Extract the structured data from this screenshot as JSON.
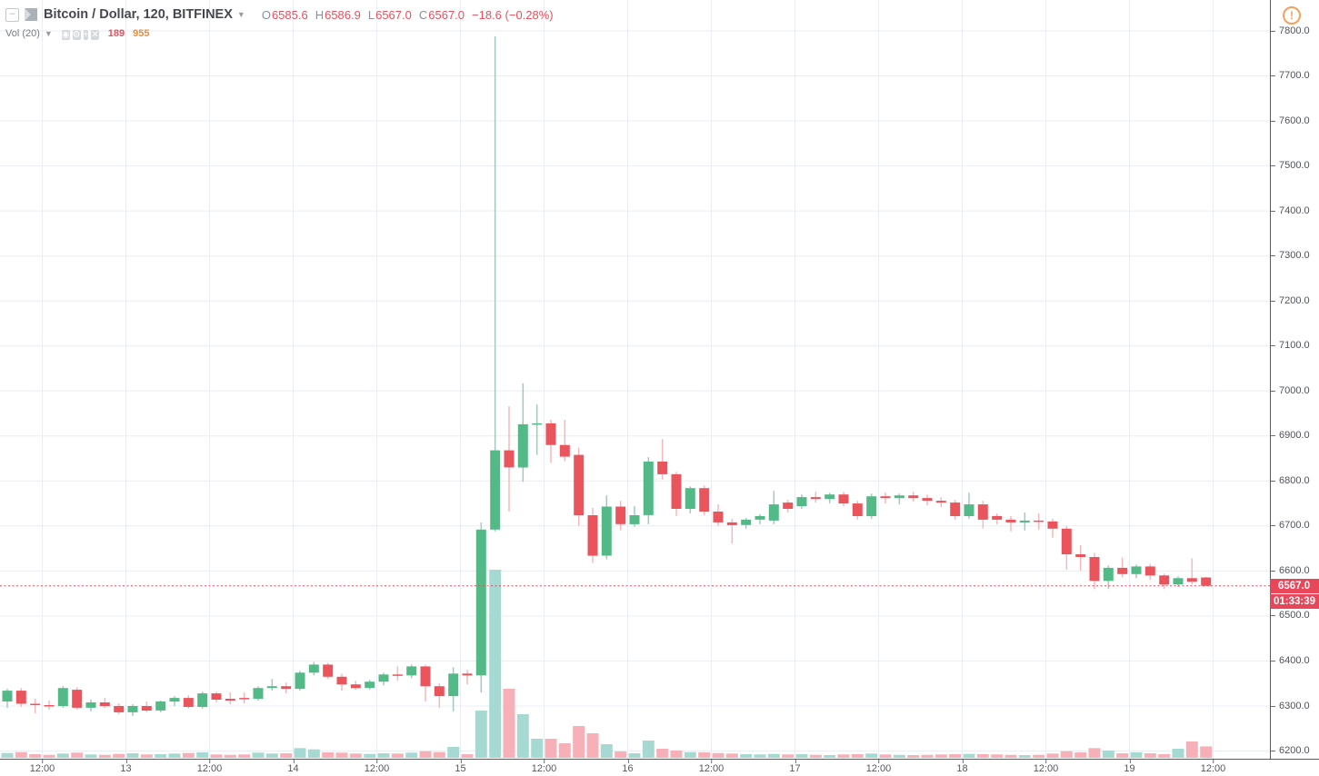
{
  "header": {
    "collapse_glyph": "—",
    "symbol_title": "Bitcoin / Dollar, 120, BITFINEX",
    "caret_glyph": "▼",
    "ohlc": {
      "o_label": "O",
      "o": "6585.6",
      "h_label": "H",
      "h": "6586.9",
      "l_label": "L",
      "l": "6567.0",
      "c_label": "C",
      "c": "6567.0",
      "change": "−18.6 (−0.28%)"
    }
  },
  "indicator": {
    "label": "Vol (20)",
    "caret_glyph": "▼",
    "buttons": [
      {
        "name": "eye-icon",
        "glyph": "◉"
      },
      {
        "name": "gear-icon",
        "glyph": "⚙"
      },
      {
        "name": "plus-icon",
        "glyph": "+"
      },
      {
        "name": "close-icon",
        "glyph": "✕"
      }
    ],
    "current_value": "189",
    "ma_value": "955"
  },
  "price_axis": {
    "ticks": [
      "7800.0",
      "7700.0",
      "7600.0",
      "7500.0",
      "7400.0",
      "7300.0",
      "7200.0",
      "7100.0",
      "7000.0",
      "6900.0",
      "6800.0",
      "6700.0",
      "6600.0",
      "6500.0",
      "6400.0",
      "6300.0",
      "6200.0"
    ],
    "last_price_label": "6567.0",
    "countdown": "01:33:39"
  },
  "time_axis": {
    "labels": [
      "12:00",
      "13",
      "12:00",
      "14",
      "12:00",
      "15",
      "12:00",
      "16",
      "12:00",
      "17",
      "12:00",
      "18",
      "12:00",
      "19",
      "12:00"
    ]
  },
  "alerts": {
    "warning_glyph": "!"
  },
  "colors": {
    "up_body": "#53b987",
    "down_body": "#e9545d",
    "up_wick": "#a3c8c2",
    "down_wick": "#f4b9be",
    "up_volume": "#a7d9d3",
    "down_volume": "#f7b0b7",
    "grid": "#e9eef4",
    "axis_line": "#555962",
    "last_price": "#e8475a",
    "warning_orange": "#f5a05a",
    "value_red": "#e8505e",
    "value_orange": "#f08b2f"
  },
  "chart_data": {
    "type": "candlestick",
    "symbol": "BITFINEX:BTCUSD",
    "title": "Bitcoin / Dollar, 120, BITFINEX",
    "interval_minutes": 120,
    "y_axis": {
      "min": 6200,
      "max": 7800,
      "tick_step": 100,
      "grid": true
    },
    "x_axis_labels": [
      "12:00",
      "13",
      "12:00",
      "14",
      "12:00",
      "15",
      "12:00",
      "16",
      "12:00",
      "17",
      "12:00",
      "18",
      "12:00",
      "19",
      "12:00"
    ],
    "last_price": 6567.0,
    "volume_unit": "K",
    "candles_format": [
      "open",
      "high",
      "low",
      "close",
      "volume"
    ],
    "candles": [
      [
        6310,
        6338,
        6296,
        6334,
        80
      ],
      [
        6334,
        6340,
        6298,
        6305,
        95
      ],
      [
        6305,
        6316,
        6284,
        6302,
        60
      ],
      [
        6302,
        6312,
        6292,
        6300,
        50
      ],
      [
        6300,
        6344,
        6296,
        6340,
        70
      ],
      [
        6336,
        6342,
        6292,
        6296,
        85
      ],
      [
        6296,
        6314,
        6288,
        6308,
        55
      ],
      [
        6308,
        6318,
        6296,
        6300,
        50
      ],
      [
        6300,
        6306,
        6282,
        6286,
        65
      ],
      [
        6286,
        6304,
        6278,
        6300,
        75
      ],
      [
        6300,
        6310,
        6286,
        6290,
        55
      ],
      [
        6290,
        6312,
        6286,
        6310,
        60
      ],
      [
        6310,
        6322,
        6300,
        6318,
        70
      ],
      [
        6318,
        6324,
        6294,
        6298,
        80
      ],
      [
        6298,
        6332,
        6294,
        6328,
        90
      ],
      [
        6328,
        6332,
        6308,
        6314,
        55
      ],
      [
        6316,
        6330,
        6304,
        6312,
        50
      ],
      [
        6318,
        6330,
        6306,
        6316,
        55
      ],
      [
        6316,
        6344,
        6312,
        6340,
        85
      ],
      [
        6340,
        6360,
        6334,
        6344,
        70
      ],
      [
        6344,
        6352,
        6328,
        6338,
        75
      ],
      [
        6338,
        6378,
        6334,
        6374,
        160
      ],
      [
        6374,
        6398,
        6368,
        6392,
        140
      ],
      [
        6392,
        6396,
        6360,
        6365,
        90
      ],
      [
        6365,
        6372,
        6334,
        6348,
        85
      ],
      [
        6348,
        6356,
        6336,
        6340,
        70
      ],
      [
        6340,
        6358,
        6336,
        6354,
        65
      ],
      [
        6354,
        6374,
        6346,
        6370,
        75
      ],
      [
        6370,
        6388,
        6356,
        6368,
        70
      ],
      [
        6368,
        6392,
        6362,
        6388,
        85
      ],
      [
        6388,
        6392,
        6310,
        6344,
        110
      ],
      [
        6344,
        6350,
        6296,
        6322,
        95
      ],
      [
        6322,
        6386,
        6288,
        6372,
        180
      ],
      [
        6372,
        6380,
        6348,
        6368,
        60
      ],
      [
        6368,
        6708,
        6330,
        6692,
        780
      ],
      [
        6692,
        7788,
        6688,
        6868,
        3105
      ],
      [
        6868,
        6966,
        6732,
        6830,
        1140
      ],
      [
        6830,
        7017,
        6798,
        6926,
        720
      ],
      [
        6926,
        6970,
        6858,
        6928,
        315
      ],
      [
        6928,
        6936,
        6840,
        6880,
        315
      ],
      [
        6880,
        6936,
        6844,
        6854,
        240
      ],
      [
        6858,
        6874,
        6700,
        6724,
        525
      ],
      [
        6724,
        6740,
        6618,
        6634,
        405
      ],
      [
        6634,
        6768,
        6626,
        6743,
        225
      ],
      [
        6743,
        6756,
        6690,
        6704,
        105
      ],
      [
        6704,
        6744,
        6698,
        6724,
        75
      ],
      [
        6724,
        6853,
        6704,
        6843,
        285
      ],
      [
        6843,
        6893,
        6803,
        6815,
        150
      ],
      [
        6815,
        6820,
        6722,
        6738,
        120
      ],
      [
        6738,
        6788,
        6728,
        6784,
        95
      ],
      [
        6784,
        6790,
        6724,
        6732,
        90
      ],
      [
        6732,
        6748,
        6700,
        6708,
        80
      ],
      [
        6708,
        6716,
        6661,
        6702,
        70
      ],
      [
        6702,
        6718,
        6694,
        6714,
        60
      ],
      [
        6714,
        6726,
        6704,
        6722,
        55
      ],
      [
        6712,
        6778,
        6704,
        6748,
        65
      ],
      [
        6752,
        6758,
        6730,
        6738,
        55
      ],
      [
        6744,
        6770,
        6738,
        6764,
        60
      ],
      [
        6764,
        6776,
        6752,
        6760,
        50
      ],
      [
        6760,
        6774,
        6750,
        6770,
        45
      ],
      [
        6770,
        6776,
        6744,
        6750,
        55
      ],
      [
        6750,
        6756,
        6714,
        6722,
        60
      ],
      [
        6722,
        6772,
        6716,
        6766,
        70
      ],
      [
        6766,
        6774,
        6750,
        6762,
        55
      ],
      [
        6762,
        6772,
        6748,
        6768,
        50
      ],
      [
        6768,
        6776,
        6754,
        6762,
        45
      ],
      [
        6762,
        6770,
        6746,
        6756,
        50
      ],
      [
        6756,
        6764,
        6742,
        6752,
        55
      ],
      [
        6752,
        6758,
        6714,
        6722,
        60
      ],
      [
        6722,
        6774,
        6716,
        6748,
        65
      ],
      [
        6748,
        6756,
        6694,
        6714,
        60
      ],
      [
        6722,
        6728,
        6704,
        6714,
        55
      ],
      [
        6714,
        6722,
        6688,
        6708,
        50
      ],
      [
        6708,
        6730,
        6690,
        6712,
        45
      ],
      [
        6712,
        6728,
        6692,
        6710,
        50
      ],
      [
        6710,
        6716,
        6674,
        6694,
        70
      ],
      [
        6694,
        6700,
        6603,
        6637,
        110
      ],
      [
        6637,
        6657,
        6601,
        6631,
        90
      ],
      [
        6631,
        6640,
        6560,
        6578,
        160
      ],
      [
        6578,
        6612,
        6560,
        6607,
        120
      ],
      [
        6607,
        6630,
        6586,
        6593,
        75
      ],
      [
        6593,
        6614,
        6584,
        6610,
        90
      ],
      [
        6610,
        6616,
        6580,
        6590,
        75
      ],
      [
        6590,
        6594,
        6560,
        6570,
        60
      ],
      [
        6570,
        6588,
        6564,
        6584,
        150
      ],
      [
        6584,
        6628,
        6570,
        6576,
        270
      ],
      [
        6585.6,
        6586.9,
        6567,
        6567,
        189
      ]
    ]
  }
}
